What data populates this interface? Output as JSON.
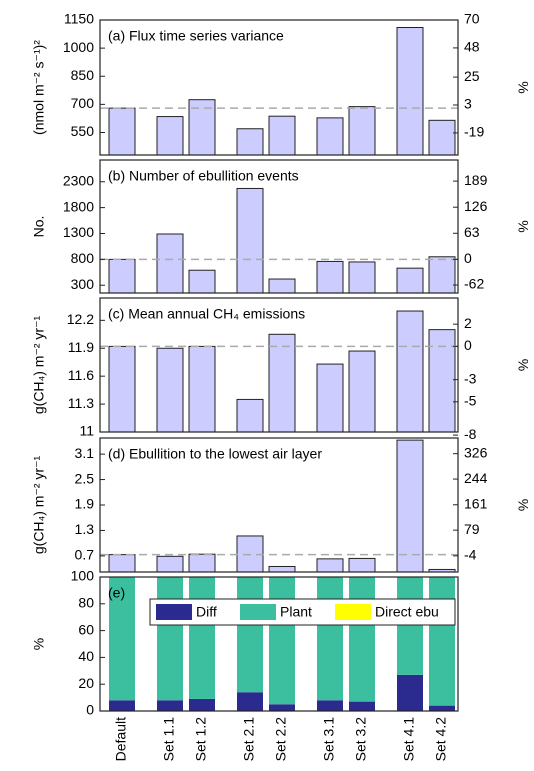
{
  "chart_data": [
    {
      "type": "bar",
      "title": "(a) Flux time series variance",
      "ylabel": "(nmol m⁻² s⁻¹)²",
      "y2label": "%",
      "ylim": [
        430,
        1150
      ],
      "yticks": [
        550,
        700,
        850,
        1000,
        1150
      ],
      "y2lim": [
        -36.4,
        70
      ],
      "y2ticks": [
        -19,
        3,
        25,
        48,
        70
      ],
      "color": "#ccccff",
      "values": [
        680,
        635,
        725,
        570,
        637,
        628,
        688,
        1110,
        615
      ]
    },
    {
      "type": "bar",
      "title": "(b) Number of ebullition events",
      "ylabel": "No.",
      "y2label": "%",
      "ylim": [
        150,
        2720
      ],
      "yticks": [
        300,
        800,
        1300,
        1800,
        2300
      ],
      "y2lim": [
        -81.25,
        240
      ],
      "y2ticks": [
        -62,
        0,
        63,
        126,
        189
      ],
      "color": "#ccccff",
      "values": [
        800,
        1290,
        590,
        2170,
        420,
        760,
        750,
        630,
        850
      ]
    },
    {
      "type": "bar",
      "title": "(c) Mean annual CH₄ emissions",
      "ylabel": "g(CH₄) m⁻² yr⁻¹",
      "y2label": "%",
      "ylim": [
        11,
        12.44
      ],
      "yticks": [
        11,
        11.3,
        11.6,
        11.9,
        12.2
      ],
      "y2lim": [
        -7.72,
        4.36
      ],
      "y2ticks": [
        -8,
        -5,
        -3,
        0,
        2
      ],
      "color": "#ccccff",
      "values": [
        11.92,
        11.9,
        11.92,
        11.35,
        12.05,
        11.73,
        11.87,
        12.3,
        12.1
      ]
    },
    {
      "type": "bar",
      "title": "(d) Ebullition to the lowest air layer",
      "ylabel": "g(CH₄) m⁻² yr⁻¹",
      "y2label": "%",
      "ylim": [
        0.32,
        3.48
      ],
      "yticks": [
        0.7,
        1.3,
        1.9,
        2.5,
        3.1
      ],
      "y2lim": [
        -56.2,
        376.7
      ],
      "y2ticks": [
        -4,
        79,
        161,
        244,
        326
      ],
      "color": "#ccccff",
      "values": [
        0.73,
        0.69,
        0.74,
        1.17,
        0.45,
        0.63,
        0.64,
        3.43,
        0.38
      ]
    },
    {
      "type": "stacked_bar",
      "title": "(e)",
      "ylabel": "%",
      "ylim": [
        0,
        100
      ],
      "yticks": [
        0,
        20,
        40,
        60,
        80,
        100
      ],
      "categories": [
        "Default",
        "Set 1.1",
        "Set 1.2",
        "Set 2.1",
        "Set 2.2",
        "Set 3.1",
        "Set 3.2",
        "Set 4.1",
        "Set 4.2"
      ],
      "series": [
        {
          "name": "Diff",
          "color": "#2b2a8e",
          "values": [
            8,
            8,
            9,
            14,
            5,
            8,
            7,
            27,
            4
          ]
        },
        {
          "name": "Plant",
          "color": "#3cbf9f",
          "values": [
            92,
            92,
            91,
            86,
            95,
            92,
            93,
            73,
            96
          ]
        },
        {
          "name": "Direct ebu",
          "color": "#ffff00",
          "values": [
            0,
            0,
            0,
            0,
            0,
            0,
            0,
            0,
            0
          ]
        }
      ]
    }
  ]
}
